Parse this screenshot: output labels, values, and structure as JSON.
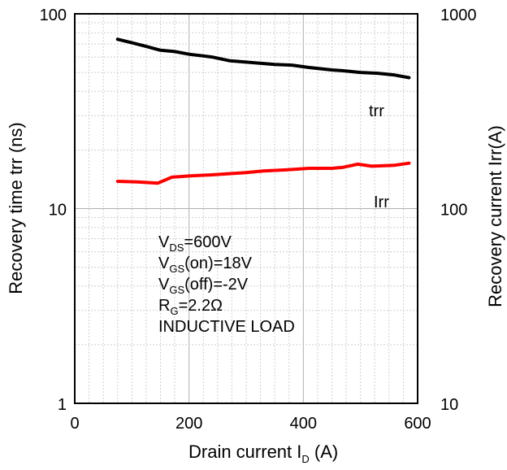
{
  "chart_data": {
    "type": "line",
    "x": {
      "label_main": "Drain current I",
      "label_sub": "D",
      "label_unit": " (A)",
      "lim": [
        0,
        600
      ],
      "ticks": [
        0,
        200,
        400,
        600
      ],
      "tick_labels": [
        "0",
        "200",
        "400",
        "600"
      ],
      "grid_step": 25
    },
    "y_left": {
      "label": "Recovery time trr (ns)",
      "scale": "log",
      "lim": [
        1,
        100
      ],
      "ticks": [
        1,
        10,
        100
      ],
      "tick_labels": [
        "1",
        "10",
        "100"
      ]
    },
    "y_right": {
      "label": "Recovery current Irr(A)",
      "scale": "log",
      "lim": [
        10,
        1000
      ],
      "ticks": [
        10,
        100,
        1000
      ],
      "tick_labels": [
        "10",
        "100",
        "1000"
      ]
    },
    "grid": true,
    "series": [
      {
        "name": "trr",
        "axis": "left",
        "color": "#000000",
        "points": [
          [
            75,
            74
          ],
          [
            100,
            71
          ],
          [
            125,
            68
          ],
          [
            150,
            65
          ],
          [
            175,
            64
          ],
          [
            200,
            62
          ],
          [
            240,
            60
          ],
          [
            270,
            57.5
          ],
          [
            300,
            56.5
          ],
          [
            350,
            55
          ],
          [
            380,
            54.5
          ],
          [
            410,
            53
          ],
          [
            450,
            51.5
          ],
          [
            470,
            51
          ],
          [
            500,
            50
          ],
          [
            530,
            49.5
          ],
          [
            560,
            48.5
          ],
          [
            585,
            47
          ]
        ]
      },
      {
        "name": "Irr",
        "axis": "right",
        "color": "#ff0000",
        "points": [
          [
            75,
            138
          ],
          [
            110,
            137
          ],
          [
            145,
            135
          ],
          [
            170,
            145
          ],
          [
            200,
            147
          ],
          [
            240,
            149
          ],
          [
            270,
            151
          ],
          [
            300,
            153
          ],
          [
            330,
            156
          ],
          [
            370,
            158
          ],
          [
            410,
            161
          ],
          [
            450,
            161
          ],
          [
            470,
            163
          ],
          [
            495,
            169
          ],
          [
            520,
            165
          ],
          [
            560,
            167
          ],
          [
            585,
            171
          ]
        ]
      }
    ],
    "series_labels": [
      "trr",
      "Irr"
    ],
    "conditions": {
      "vds": {
        "main": "V",
        "sub": "DS",
        "value": "=600V"
      },
      "vgs_on": {
        "main": "V",
        "sub": "GS",
        "value": "(on)=18V"
      },
      "vgs_off": {
        "main": "V",
        "sub": "GS",
        "value": "(off)=-2V"
      },
      "rg": {
        "main": "R",
        "sub": "G",
        "value": "=2.2Ω"
      },
      "load": "INDUCTIVE LOAD"
    }
  }
}
